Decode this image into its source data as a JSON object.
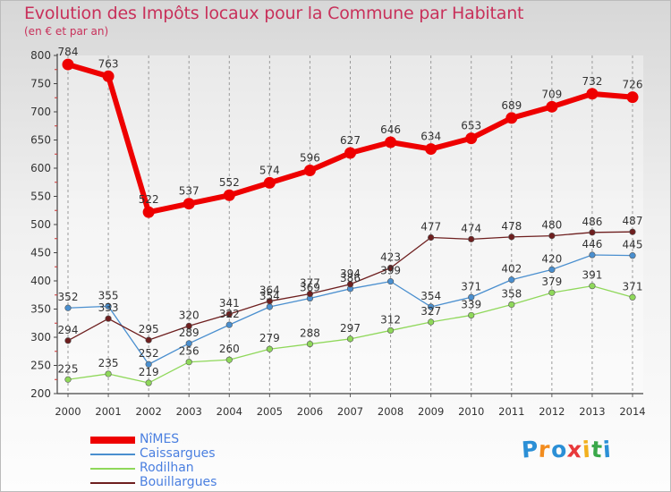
{
  "chart_data": {
    "type": "line",
    "title": "Evolution des Impôts locaux pour la Commune par Habitant",
    "subtitle": "(en € et par an)",
    "xlabel": "",
    "ylabel": "",
    "x": [
      "2000",
      "2001",
      "2002",
      "2003",
      "2004",
      "2005",
      "2006",
      "2007",
      "2008",
      "2009",
      "2010",
      "2011",
      "2012",
      "2013",
      "2014"
    ],
    "ylim": [
      200,
      800
    ],
    "yticks": [
      200,
      250,
      300,
      350,
      400,
      450,
      500,
      550,
      600,
      650,
      700,
      750,
      800
    ],
    "grid": "vertical",
    "legend_position": "bottom-left",
    "series": [
      {
        "name": "NîMES",
        "color": "#ee0000",
        "values": [
          784,
          763,
          522,
          537,
          552,
          574,
          596,
          627,
          646,
          634,
          653,
          689,
          709,
          732,
          726
        ]
      },
      {
        "name": "Caissargues",
        "color": "#4a8fcf",
        "values": [
          352,
          355,
          252,
          289,
          322,
          354,
          369,
          386,
          399,
          354,
          371,
          402,
          420,
          446,
          445
        ]
      },
      {
        "name": "Rodilhan",
        "color": "#8fd85a",
        "values": [
          225,
          235,
          219,
          256,
          260,
          279,
          288,
          297,
          312,
          327,
          339,
          358,
          379,
          391,
          371
        ]
      },
      {
        "name": "Bouillargues",
        "color": "#6e1f1f",
        "values": [
          294,
          333,
          295,
          320,
          341,
          364,
          377,
          394,
          423,
          477,
          474,
          478,
          480,
          486,
          487
        ]
      }
    ]
  },
  "legend": [
    {
      "label": "NîMES",
      "color": "#ee0000"
    },
    {
      "label": "Caissargues",
      "color": "#4a8fcf"
    },
    {
      "label": "Rodilhan",
      "color": "#8fd85a"
    },
    {
      "label": "Bouillargues",
      "color": "#6e1f1f"
    }
  ],
  "brand": {
    "letters": [
      "P",
      "r",
      "o",
      "x",
      "i",
      "t",
      "i"
    ],
    "colors": [
      "#2b8fd6",
      "#f28c1e",
      "#2b8fd6",
      "#e8393b",
      "#f2b01e",
      "#3aa84a",
      "#2b8fd6"
    ]
  }
}
